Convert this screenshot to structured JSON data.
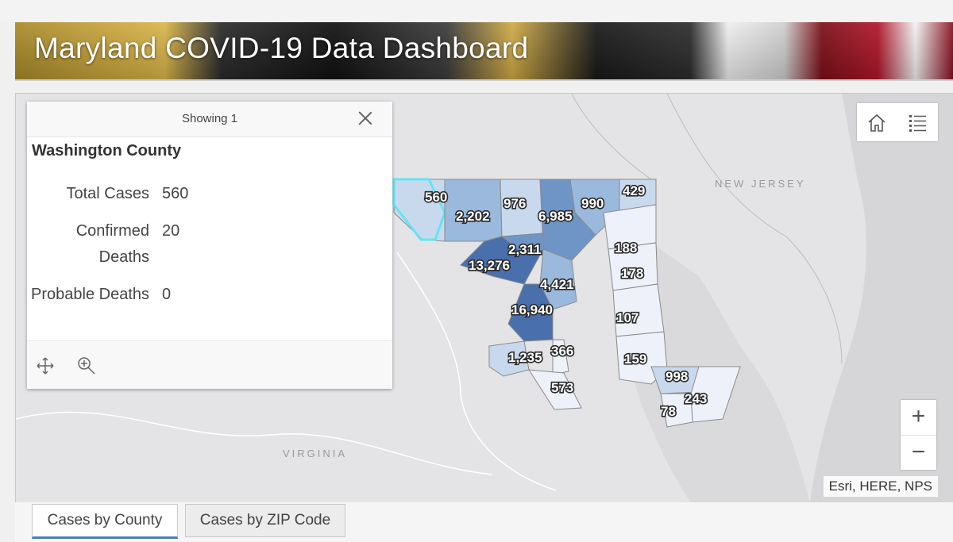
{
  "header": {
    "title": "Maryland COVID-19 Data Dashboard"
  },
  "popup": {
    "showing_label": "Showing 1",
    "feature_title": "Washington County",
    "fields": [
      {
        "name": "Total Cases",
        "value": "560"
      },
      {
        "name": "Confirmed Deaths",
        "value": "20"
      },
      {
        "name": "Probable Deaths",
        "value": "0"
      }
    ],
    "icons": [
      "close-icon",
      "move-icon",
      "zoom-to-icon"
    ]
  },
  "map": {
    "region_labels": [
      "NEW JERSEY",
      "VIRGINIA"
    ],
    "county_labels": [
      "560",
      "2,202",
      "976",
      "6,985",
      "990",
      "429",
      "2,311",
      "188",
      "13,276",
      "178",
      "4,421",
      "16,940",
      "107",
      "1,235",
      "366",
      "159",
      "998",
      "573",
      "243",
      "78"
    ],
    "attribution": "Esri, HERE, NPS",
    "colors": {
      "lightest": "#eef1f9",
      "light": "#c9d9ed",
      "medium": "#9ab9dc",
      "dark": "#6f95c6",
      "darkest": "#4a6fad",
      "selected_outline": "#5fe6f4"
    }
  },
  "widgets": {
    "home_icon": "home-icon",
    "legend_icon": "legend-list-icon"
  },
  "zoom": {
    "in_label": "+",
    "out_label": "−"
  },
  "tabs": [
    {
      "label": "Cases by County",
      "active": true
    },
    {
      "label": "Cases by ZIP Code",
      "active": false
    }
  ]
}
